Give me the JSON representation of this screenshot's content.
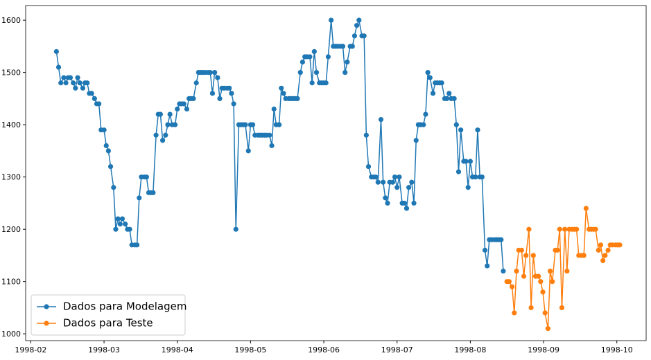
{
  "chart_data": {
    "type": "line",
    "xlim": [
      1.93,
      10.4
    ],
    "xticks": [
      {
        "value": 2,
        "label": "1998-02"
      },
      {
        "value": 3,
        "label": "1998-03"
      },
      {
        "value": 4,
        "label": "1998-04"
      },
      {
        "value": 5,
        "label": "1998-05"
      },
      {
        "value": 6,
        "label": "1998-06"
      },
      {
        "value": 7,
        "label": "1998-07"
      },
      {
        "value": 8,
        "label": "1998-08"
      },
      {
        "value": 9,
        "label": "1998-09"
      },
      {
        "value": 10,
        "label": "1998-10"
      }
    ],
    "ylim": [
      987,
      1628
    ],
    "yticks": [
      1000,
      1100,
      1200,
      1300,
      1400,
      1500,
      1600
    ],
    "grid": false,
    "legend": "lower left",
    "series": [
      {
        "name": "Dados para Modelagem",
        "color": "#1f77b4",
        "x": [
          2.35,
          2.38,
          2.41,
          2.45,
          2.48,
          2.51,
          2.54,
          2.58,
          2.61,
          2.64,
          2.67,
          2.71,
          2.74,
          2.77,
          2.8,
          2.83,
          2.87,
          2.9,
          2.93,
          2.96,
          3.0,
          3.03,
          3.06,
          3.09,
          3.13,
          3.16,
          3.19,
          3.22,
          3.25,
          3.29,
          3.32,
          3.35,
          3.38,
          3.42,
          3.45,
          3.48,
          3.51,
          3.55,
          3.58,
          3.61,
          3.64,
          3.67,
          3.71,
          3.74,
          3.77,
          3.8,
          3.84,
          3.87,
          3.9,
          3.93,
          3.97,
          4.0,
          4.03,
          4.06,
          4.09,
          4.13,
          4.16,
          4.19,
          4.22,
          4.26,
          4.29,
          4.32,
          4.35,
          4.38,
          4.42,
          4.45,
          4.48,
          4.51,
          4.55,
          4.58,
          4.61,
          4.64,
          4.68,
          4.71,
          4.74,
          4.77,
          4.8,
          4.84,
          4.87,
          4.9,
          4.93,
          4.97,
          5.0,
          5.03,
          5.06,
          5.1,
          5.13,
          5.16,
          5.19,
          5.22,
          5.26,
          5.29,
          5.32,
          5.35,
          5.39,
          5.42,
          5.45,
          5.48,
          5.52,
          5.55,
          5.58,
          5.61,
          5.64,
          5.68,
          5.71,
          5.74,
          5.77,
          5.81,
          5.84,
          5.87,
          5.9,
          5.94,
          5.97,
          6.0,
          6.03,
          6.06,
          6.1,
          6.13,
          6.16,
          6.19,
          6.23,
          6.26,
          6.29,
          6.32,
          6.36,
          6.39,
          6.42,
          6.45,
          6.48,
          6.52,
          6.55,
          6.58,
          6.61,
          6.65,
          6.68,
          6.71,
          6.74,
          6.78,
          6.81,
          6.84,
          6.87,
          6.9,
          6.94,
          6.97,
          7.0,
          7.03,
          7.07,
          7.1,
          7.13,
          7.16,
          7.2,
          7.23,
          7.26,
          7.29,
          7.32,
          7.36,
          7.39,
          7.42,
          7.45,
          7.49,
          7.52,
          7.55,
          7.58,
          7.61,
          7.65,
          7.68,
          7.71,
          7.74,
          7.78,
          7.81,
          7.84,
          7.87,
          7.91,
          7.94,
          7.97,
          8.0,
          8.03,
          8.07,
          8.1,
          8.13,
          8.16,
          8.2,
          8.23,
          8.26,
          8.29,
          8.33,
          8.36,
          8.39,
          8.42,
          8.45
        ],
        "values": [
          1540,
          1510,
          1480,
          1490,
          1480,
          1490,
          1490,
          1480,
          1470,
          1490,
          1480,
          1470,
          1480,
          1480,
          1460,
          1460,
          1450,
          1440,
          1440,
          1390,
          1390,
          1360,
          1350,
          1320,
          1280,
          1200,
          1220,
          1210,
          1220,
          1210,
          1200,
          1200,
          1170,
          1170,
          1170,
          1260,
          1300,
          1300,
          1300,
          1270,
          1270,
          1270,
          1380,
          1420,
          1420,
          1370,
          1380,
          1400,
          1420,
          1400,
          1400,
          1430,
          1440,
          1440,
          1440,
          1430,
          1450,
          1450,
          1450,
          1480,
          1500,
          1500,
          1500,
          1500,
          1500,
          1500,
          1460,
          1500,
          1490,
          1450,
          1470,
          1470,
          1470,
          1470,
          1460,
          1440,
          1200,
          1400,
          1400,
          1400,
          1400,
          1350,
          1400,
          1400,
          1380,
          1380,
          1380,
          1380,
          1380,
          1380,
          1380,
          1360,
          1430,
          1400,
          1400,
          1470,
          1460,
          1450,
          1450,
          1450,
          1450,
          1450,
          1450,
          1500,
          1520,
          1530,
          1530,
          1530,
          1480,
          1540,
          1500,
          1480,
          1480,
          1480,
          1480,
          1530,
          1600,
          1550,
          1550,
          1550,
          1550,
          1550,
          1500,
          1520,
          1550,
          1550,
          1570,
          1590,
          1600,
          1570,
          1570,
          1380,
          1320,
          1300,
          1300,
          1300,
          1290,
          1410,
          1290,
          1260,
          1250,
          1290,
          1290,
          1300,
          1280,
          1300,
          1250,
          1250,
          1240,
          1280,
          1290,
          1250,
          1370,
          1400,
          1400,
          1400,
          1420,
          1500,
          1490,
          1460,
          1480,
          1480,
          1480,
          1480,
          1450,
          1450,
          1460,
          1450,
          1450,
          1400,
          1310,
          1390,
          1330,
          1330,
          1280,
          1330,
          1300,
          1300,
          1390,
          1300,
          1300,
          1160,
          1130,
          1180,
          1180,
          1180,
          1180,
          1180,
          1180,
          1120
        ]
      },
      {
        "name": "Dados para Teste",
        "color": "#ff7f0e",
        "x": [
          8.5,
          8.53,
          8.57,
          8.6,
          8.63,
          8.66,
          8.7,
          8.73,
          8.76,
          8.8,
          8.83,
          8.86,
          8.89,
          8.93,
          8.96,
          8.99,
          9.02,
          9.06,
          9.09,
          9.12,
          9.16,
          9.19,
          9.22,
          9.25,
          9.29,
          9.32,
          9.35,
          9.39,
          9.42,
          9.45,
          9.48,
          9.52,
          9.55,
          9.58,
          9.62,
          9.65,
          9.68,
          9.71,
          9.75,
          9.78,
          9.81,
          9.84,
          9.88,
          9.91,
          9.94,
          9.98,
          10.01,
          10.04
        ],
        "values": [
          1100,
          1100,
          1090,
          1040,
          1120,
          1160,
          1160,
          1110,
          1150,
          1200,
          1050,
          1150,
          1110,
          1110,
          1100,
          1080,
          1040,
          1010,
          1120,
          1100,
          1160,
          1160,
          1200,
          1050,
          1200,
          1120,
          1200,
          1200,
          1200,
          1200,
          1150,
          1150,
          1150,
          1240,
          1200,
          1200,
          1200,
          1200,
          1160,
          1170,
          1140,
          1150,
          1160,
          1170,
          1170,
          1170,
          1170,
          1170
        ]
      }
    ]
  }
}
